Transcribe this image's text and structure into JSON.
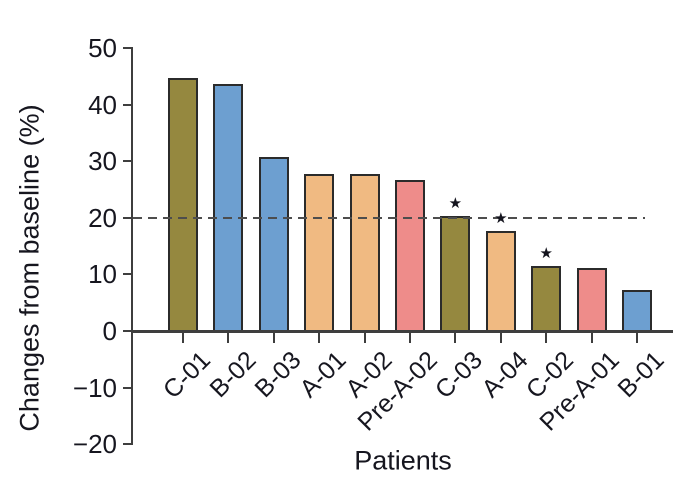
{
  "figure": {
    "background": "#ffffff"
  },
  "chart_data": {
    "type": "bar",
    "title": "",
    "xlabel": "Patients",
    "ylabel": "Changes from baseline (%)",
    "ylim": [
      -20,
      50
    ],
    "yticks": [
      50,
      40,
      30,
      20,
      10,
      0,
      -10,
      -20
    ],
    "grid": false,
    "legend": false,
    "reference_line": {
      "y": 20,
      "style": "dashed",
      "color": "#4d4d4d"
    },
    "categories": [
      "C-01",
      "B-02",
      "B-03",
      "A-01",
      "A-02",
      "Pre-A-02",
      "C-03",
      "A-04",
      "C-02",
      "Pre-A-01",
      "B-01"
    ],
    "values": [
      44.5,
      43.5,
      30.5,
      27.5,
      27.5,
      26.5,
      20.2,
      17.5,
      11.3,
      10.9,
      7
    ],
    "bar_color_names": [
      "olive",
      "blue",
      "blue",
      "orange",
      "orange",
      "pink",
      "olive",
      "orange",
      "olive",
      "pink",
      "blue"
    ],
    "significance": {
      "symbol": "★",
      "marked_categories": [
        "C-03",
        "A-04",
        "C-02"
      ]
    },
    "palette": {
      "olive": "#95883f",
      "blue": "#6d9fd0",
      "orange": "#f0ba82",
      "pink": "#ee8c8a",
      "bar_border": "#2b2b2b",
      "axis": "#3e3e3e",
      "text": "#16161f"
    }
  }
}
